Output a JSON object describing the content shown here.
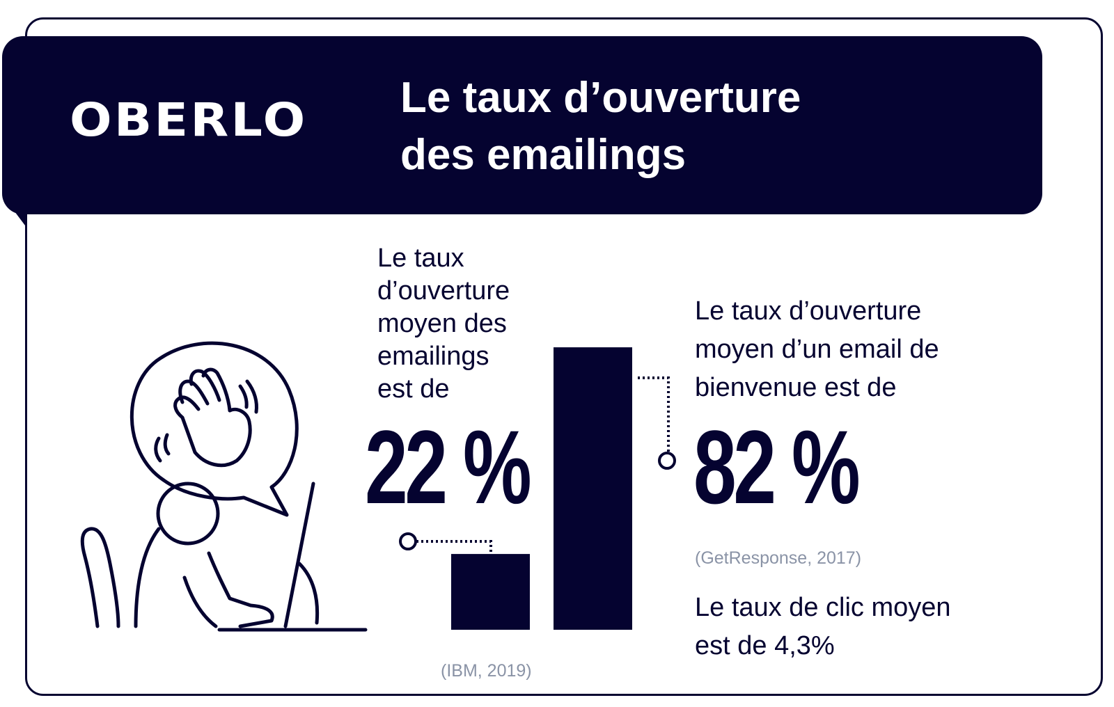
{
  "brand": {
    "logo_text": "OBERLO",
    "navy": "#050330",
    "muted": "#8a93a6"
  },
  "header": {
    "title_lines": [
      "Le taux d’ouverture",
      "des emailings"
    ]
  },
  "stats": {
    "left": {
      "label_lines": [
        "Le taux",
        "d’ouverture",
        "moyen des",
        "emailings",
        "est de"
      ],
      "value": "22 %",
      "source": "(IBM, 2019)"
    },
    "right": {
      "label_lines": [
        "Le taux d’ouverture",
        "moyen d’un email de",
        "bienvenue est de"
      ],
      "value": "82 %",
      "source": "(GetResponse, 2017)"
    },
    "click_rate_lines": [
      "Le taux de clic moyen",
      "est de 4,3%"
    ]
  },
  "illustration": {
    "icon": "person-waving-at-laptop-icon"
  },
  "chart_data": {
    "type": "bar",
    "title": "Le taux d’ouverture des emailings",
    "categories": [
      "Emailings",
      "Email de bienvenue"
    ],
    "values": [
      22,
      82
    ],
    "unit": "%",
    "ylim": [
      0,
      100
    ],
    "grid": false
  }
}
